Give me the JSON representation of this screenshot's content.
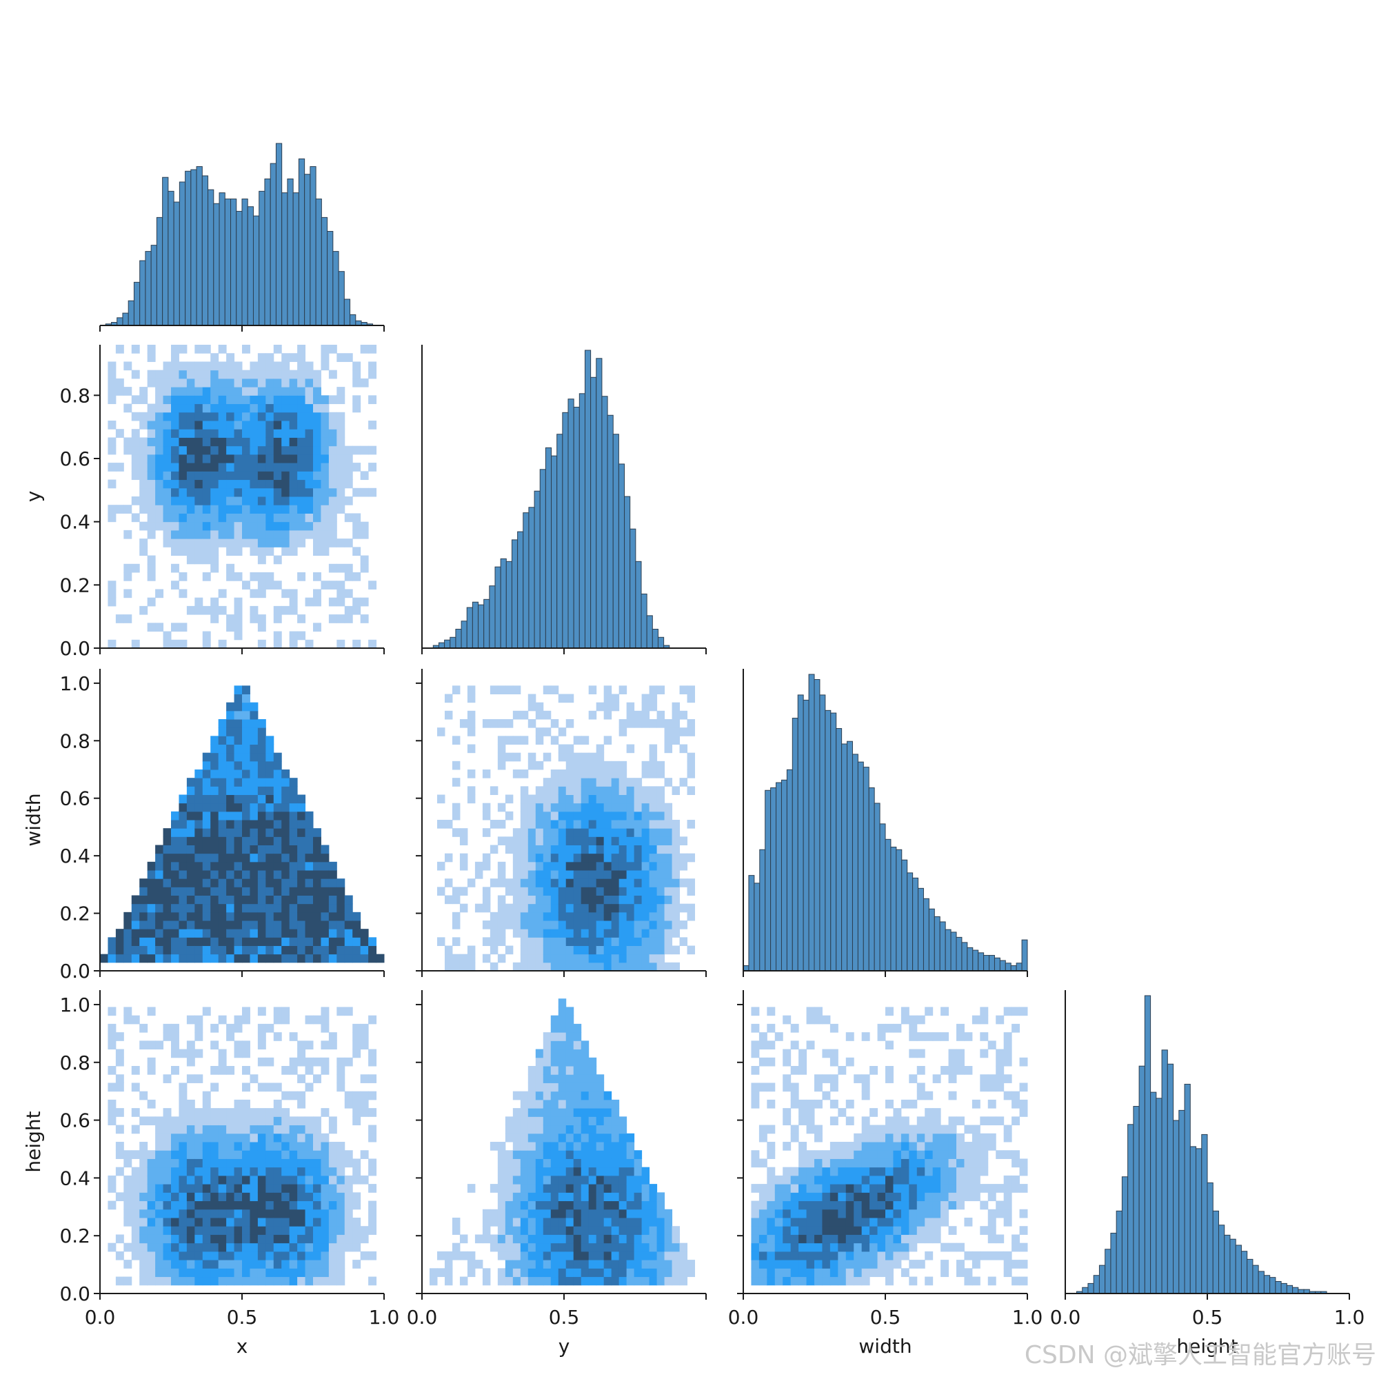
{
  "chart_data": {
    "type": "pairplot",
    "layout": "corner (lower triangle)",
    "diagonal_type": "histogram",
    "offdiagonal_type": "heatmap",
    "variables": [
      "x",
      "y",
      "width",
      "height"
    ],
    "colors": {
      "bar_fill": "#4e8fc3",
      "bar_edge": "#2c3e50",
      "heat_light": "#b3d0f1",
      "heat_mid": "#2a9df4",
      "heat_dark": "#2d4e6e",
      "axis": "#1a1a1a"
    },
    "axes": {
      "x": {
        "range": [
          0.0,
          1.0
        ],
        "ticks": [
          "0.0",
          "0.5",
          "1.0"
        ]
      },
      "y": {
        "range": [
          0.0,
          0.96
        ],
        "ticks": [
          "0.0",
          "0.2",
          "0.4",
          "0.6",
          "0.8"
        ],
        "x_ticks": [
          "0.0",
          "0.5"
        ]
      },
      "width": {
        "range": [
          0.0,
          1.05
        ],
        "ticks": [
          "0.0",
          "0.2",
          "0.4",
          "0.6",
          "0.8",
          "1.0"
        ],
        "x_ticks": [
          "0.0",
          "0.5",
          "1.0"
        ]
      },
      "height": {
        "range": [
          0.0,
          1.05
        ],
        "ticks": [
          "0.0",
          "0.2",
          "0.4",
          "0.6",
          "0.8",
          "1.0"
        ],
        "x_ticks": [
          "0.0",
          "0.5",
          "1.0"
        ]
      }
    },
    "histograms": {
      "x": {
        "bin_range": [
          0.0,
          1.0
        ],
        "counts": [
          0,
          1,
          2,
          5,
          8,
          16,
          28,
          42,
          48,
          52,
          70,
          96,
          87,
          80,
          93,
          100,
          101,
          103,
          97,
          88,
          79,
          86,
          82,
          82,
          74,
          82,
          77,
          71,
          87,
          95,
          105,
          118,
          86,
          95,
          86,
          108,
          98,
          103,
          82,
          70,
          61,
          48,
          35,
          17,
          7,
          3,
          2,
          1,
          0,
          0
        ]
      },
      "y": {
        "bin_range": [
          0.0,
          0.95
        ],
        "counts": [
          0,
          0,
          1,
          2,
          3,
          4,
          7,
          10,
          15,
          17,
          16,
          18,
          23,
          30,
          33,
          32,
          40,
          43,
          50,
          52,
          58,
          66,
          74,
          71,
          79,
          87,
          92,
          89,
          94,
          110,
          100,
          107,
          93,
          86,
          79,
          68,
          56,
          44,
          32,
          20,
          12,
          7,
          4,
          1,
          0,
          0,
          0,
          0
        ]
      },
      "width": {
        "bin_range": [
          0.0,
          1.0
        ],
        "counts": [
          2,
          37,
          34,
          47,
          70,
          71,
          73,
          74,
          78,
          98,
          107,
          105,
          115,
          113,
          107,
          101,
          100,
          94,
          88,
          89,
          84,
          81,
          79,
          71,
          65,
          57,
          51,
          48,
          47,
          43,
          38,
          36,
          32,
          28,
          24,
          21,
          19,
          16,
          15,
          13,
          11,
          9,
          8,
          7,
          6,
          6,
          5,
          4,
          3,
          2,
          3,
          12
        ]
      },
      "height": {
        "bin_range": [
          0.0,
          1.0
        ],
        "counts": [
          0,
          0,
          1,
          3,
          5,
          9,
          14,
          22,
          30,
          41,
          58,
          84,
          93,
          113,
          148,
          100,
          97,
          121,
          114,
          86,
          91,
          104,
          73,
          72,
          79,
          55,
          41,
          34,
          29,
          27,
          24,
          21,
          17,
          14,
          11,
          9,
          8,
          6,
          5,
          4,
          3,
          2,
          2,
          1,
          1,
          1,
          0,
          0,
          0,
          0
        ]
      }
    }
  },
  "labels": {
    "x": "x",
    "y": "y",
    "width": "width",
    "height": "height"
  },
  "watermark": "CSDN @斌擎人工智能官方账号"
}
